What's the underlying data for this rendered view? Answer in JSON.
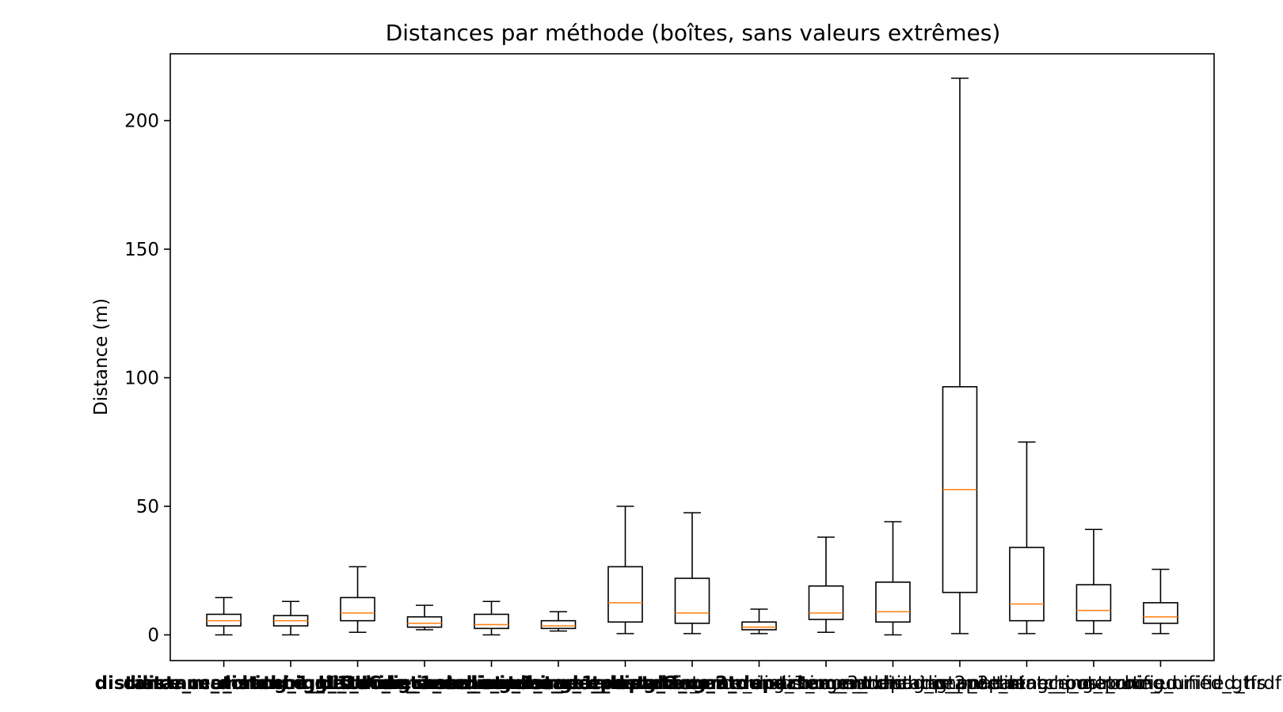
{
  "chart_data": {
    "type": "box",
    "title": "Distances par méthode (boîtes, sans valeurs extrêmes)",
    "xlabel": "",
    "ylabel": "Distance (m)",
    "ylim": [
      -10,
      226
    ],
    "yticks": [
      0,
      50,
      100,
      150,
      200
    ],
    "show_outliers": false,
    "grid": false,
    "colors": {
      "box": "#000000",
      "median": "#ff7f0e"
    },
    "categories": [
      "distance_matching_1_UIC",
      "distance_matching_1_UIC_rerank",
      "distance_matching_1_code_insee_commune",
      "distance_matching_1_code_insee_rerank",
      "distance_matching_1_code_postal",
      "distance_matching_1_departement",
      "distance_matching_2_commune",
      "distance_matching_2_departement",
      "distance_matching_3_commune",
      "distance_matching_3_departement",
      "distance_matching_p_2partner",
      "distance_matching_p_3partner_postproc",
      "distance_matching_route_unified",
      "distance_matching_route_unified_gtfs",
      "distance_matching_unified_hrdf"
    ],
    "bold_categories": [
      0,
      1,
      2,
      3,
      4,
      5,
      6,
      7
    ],
    "boxes": [
      {
        "whislo": 0,
        "q1": 3.5,
        "med": 5.5,
        "q3": 8,
        "whishi": 14.5
      },
      {
        "whislo": 0,
        "q1": 3.5,
        "med": 5.5,
        "q3": 7.5,
        "whishi": 13
      },
      {
        "whislo": 1,
        "q1": 5.5,
        "med": 8.5,
        "q3": 14.5,
        "whishi": 26.5
      },
      {
        "whislo": 2,
        "q1": 3,
        "med": 4.5,
        "q3": 7,
        "whishi": 11.5
      },
      {
        "whislo": 0,
        "q1": 2.5,
        "med": 4,
        "q3": 8,
        "whishi": 13
      },
      {
        "whislo": 1.5,
        "q1": 2.5,
        "med": 3.5,
        "q3": 5.5,
        "whishi": 9
      },
      {
        "whislo": 0.5,
        "q1": 5,
        "med": 12.5,
        "q3": 26.5,
        "whishi": 50
      },
      {
        "whislo": 0.5,
        "q1": 4.5,
        "med": 8.5,
        "q3": 22,
        "whishi": 47.5
      },
      {
        "whislo": 0.5,
        "q1": 2,
        "med": 3,
        "q3": 5,
        "whishi": 10
      },
      {
        "whislo": 1,
        "q1": 6,
        "med": 8.5,
        "q3": 19,
        "whishi": 38
      },
      {
        "whislo": 0,
        "q1": 5,
        "med": 9,
        "q3": 20.5,
        "whishi": 44
      },
      {
        "whislo": 0.5,
        "q1": 16.5,
        "med": 56.5,
        "q3": 96.5,
        "whishi": 216.5
      },
      {
        "whislo": 0.5,
        "q1": 5.5,
        "med": 12,
        "q3": 34,
        "whishi": 75
      },
      {
        "whislo": 0.5,
        "q1": 5.5,
        "med": 9.5,
        "q3": 19.5,
        "whishi": 41
      },
      {
        "whislo": 0.5,
        "q1": 4.5,
        "med": 7,
        "q3": 12.5,
        "whishi": 25.5
      }
    ]
  }
}
